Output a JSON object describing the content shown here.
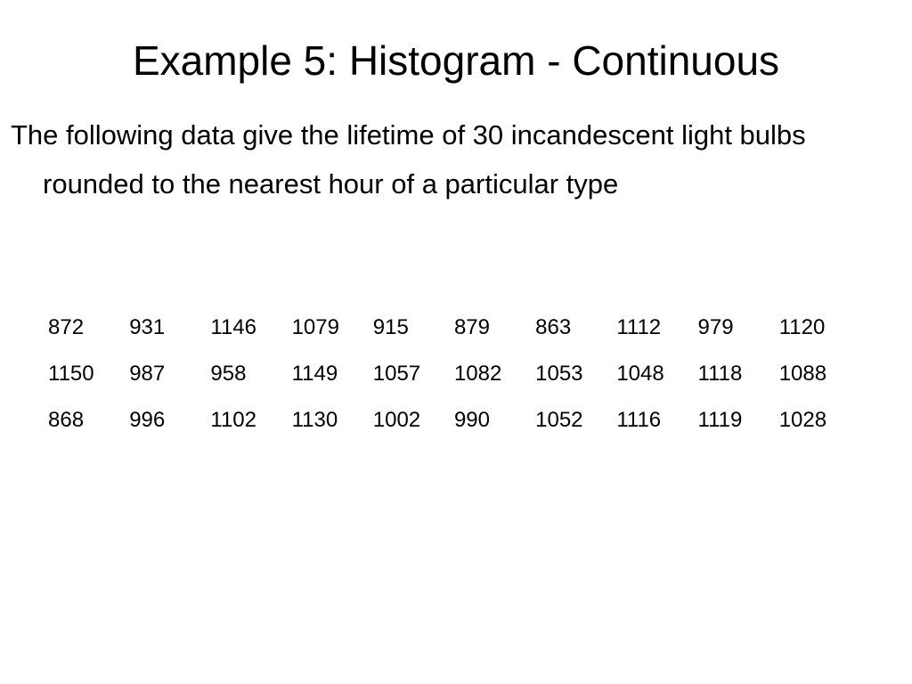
{
  "header": {
    "title": "Example 5: Histogram - Continuous"
  },
  "body": {
    "text": "The following data give the lifetime of 30 incandescent light bulbs rounded to the nearest hour of a particular type"
  },
  "table": {
    "rows": [
      [
        872,
        931,
        1146,
        1079,
        915,
        879,
        863,
        1112,
        979,
        1120
      ],
      [
        1150,
        987,
        958,
        1149,
        1057,
        1082,
        1053,
        1048,
        1118,
        1088
      ],
      [
        868,
        996,
        1102,
        1130,
        1002,
        990,
        1052,
        1116,
        1119,
        1028
      ]
    ]
  }
}
